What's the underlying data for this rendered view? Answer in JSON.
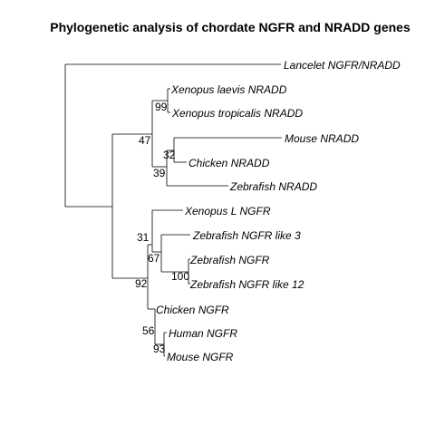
{
  "title": "Phylogenetic analysis of chordate NGFR and NRADD genes",
  "leaves": [
    "Lancelet NGFR/NRADD",
    "Xenopus laevis NRADD",
    "Xenopus tropicalis NRADD",
    "Mouse NRADD",
    "Chicken NRADD",
    "Zebrafish NRADD",
    "Xenopus L NGFR",
    "Zebrafish NGFR like 3",
    "Zebrafish NGFR",
    "Zebrafish NGFR like 12",
    "Chicken NGFR",
    "Human NGFR",
    "Mouse NGFR"
  ],
  "bootstrap": [
    "99",
    "47",
    "32",
    "39",
    "31",
    "67",
    "100",
    "92",
    "56",
    "93"
  ]
}
